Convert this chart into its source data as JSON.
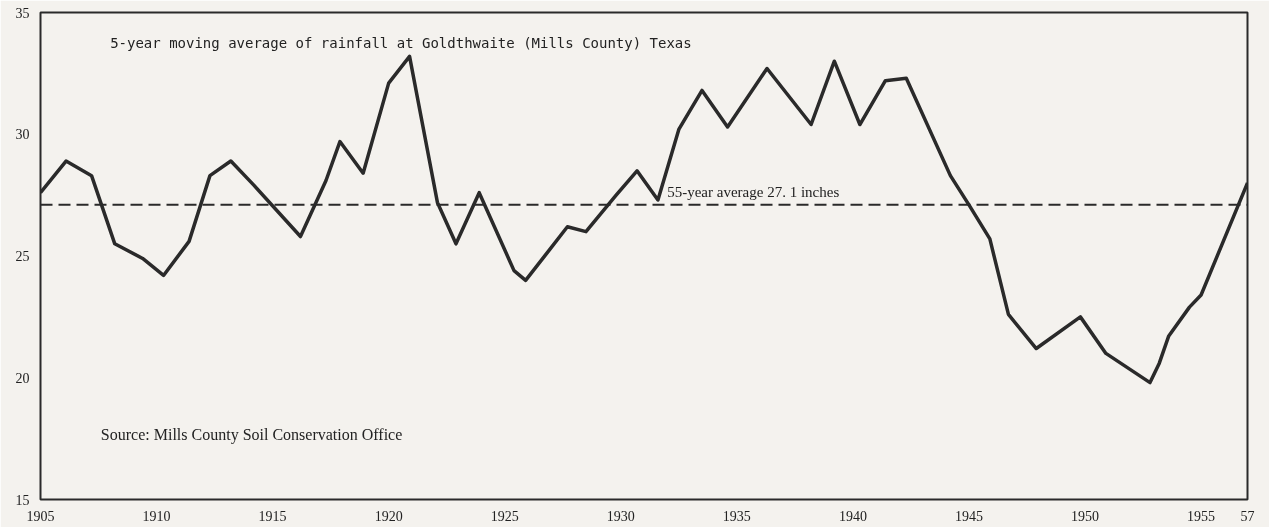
{
  "chart_data": {
    "type": "line",
    "title": "5-year moving average of rainfall at Goldthwaite (Mills County) Texas",
    "x": [
      1905,
      1906.1,
      1907.2,
      1908.2,
      1909.4,
      1910.3,
      1911.4,
      1912.3,
      1913.2,
      1914.2,
      1916.2,
      1917.3,
      1917.9,
      1918.9,
      1920.0,
      1920.9,
      1922.1,
      1922.9,
      1923.9,
      1925.4,
      1925.9,
      1926.8,
      1927.7,
      1928.5,
      1929.8,
      1930.7,
      1931.6,
      1932.5,
      1933.5,
      1934.6,
      1936.3,
      1938.2,
      1939.2,
      1940.3,
      1941.4,
      1942.3,
      1944.2,
      1945.0,
      1945.9,
      1946.7,
      1947.9,
      1949.8,
      1950.9,
      1952.8,
      1953.2,
      1953.6,
      1954.5,
      1955.0,
      1957.0
    ],
    "series": [
      {
        "color": "#2a2a2a",
        "values": [
          27.6,
          28.9,
          28.3,
          25.5,
          24.9,
          24.2,
          25.6,
          28.3,
          28.9,
          27.9,
          25.8,
          28.1,
          29.7,
          28.4,
          32.1,
          33.2,
          27.2,
          25.5,
          27.6,
          24.4,
          24.0,
          25.1,
          26.2,
          26.0,
          27.5,
          28.5,
          27.3,
          30.2,
          31.8,
          30.3,
          32.7,
          30.4,
          33.0,
          30.4,
          32.2,
          32.3,
          28.3,
          27.1,
          25.7,
          22.6,
          21.2,
          22.5,
          21.0,
          19.8,
          20.6,
          21.7,
          22.9,
          23.4,
          28.0
        ]
      }
    ],
    "xlim": [
      1905,
      1957
    ],
    "xticks": [
      1905,
      1910,
      1915,
      1920,
      1925,
      1930,
      1935,
      1940,
      1945,
      1950,
      1955,
      {
        "value": 1957,
        "label": "57"
      }
    ],
    "ylim": [
      15,
      35
    ],
    "yticks": [
      15,
      20,
      25,
      30,
      35
    ],
    "grid": false,
    "line_style": "solid",
    "marker": "none",
    "ref_lines": [
      {
        "axis": "y",
        "value": 27.1,
        "label": "55-year average  27. 1 inches",
        "line_style": "dashed",
        "color": "#2a2a2a"
      }
    ],
    "annotations": [
      "Source:  Mills County Soil Conservation Office"
    ]
  }
}
